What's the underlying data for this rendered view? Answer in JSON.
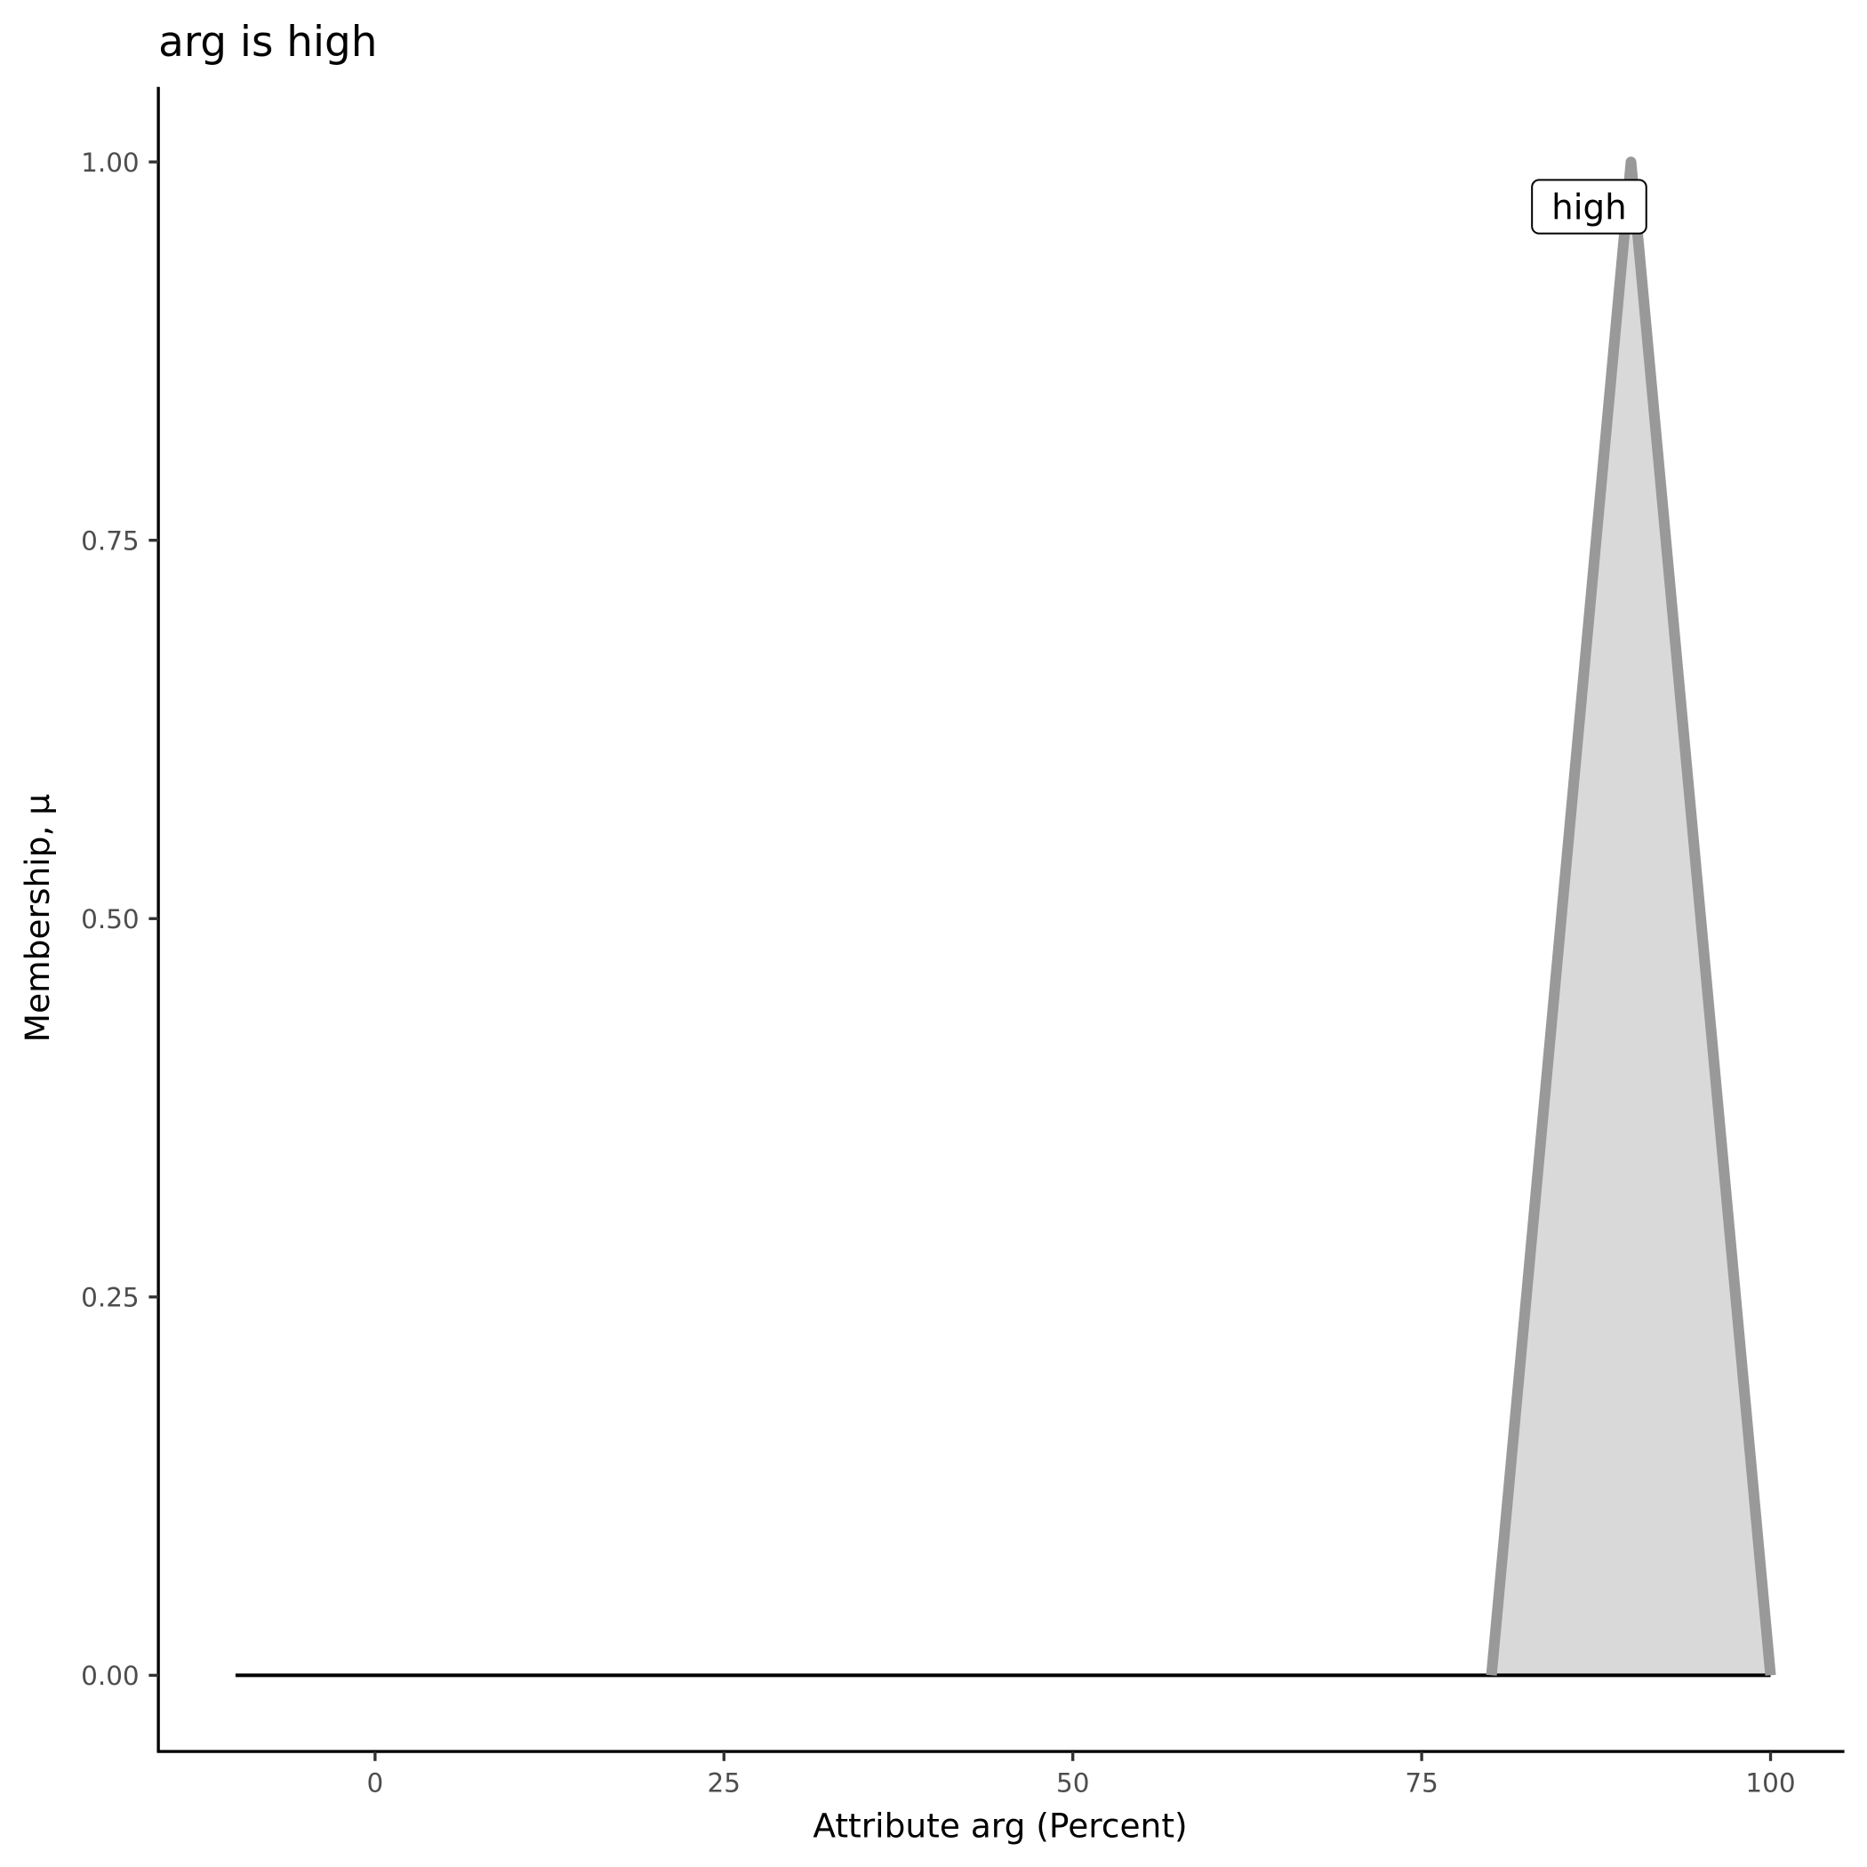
{
  "chart_data": {
    "type": "area",
    "title": "arg is high",
    "xlabel": "Attribute arg (Percent)",
    "ylabel": "Membership, μ",
    "xlim": [
      -15.5,
      105
    ],
    "ylim": [
      -0.05,
      1.05
    ],
    "x_ticks": [
      0,
      25,
      50,
      75,
      100
    ],
    "x_tick_labels": [
      "0",
      "25",
      "50",
      "75",
      "100"
    ],
    "y_ticks": [
      0,
      0.25,
      0.5,
      0.75,
      1.0
    ],
    "y_tick_labels": [
      "0.00",
      "0.25",
      "0.50",
      "0.75",
      "1.00"
    ],
    "grid": false,
    "baseline": {
      "x": [
        -10,
        100
      ],
      "y": [
        0,
        0
      ],
      "color": "#000000"
    },
    "series": [
      {
        "name": "high",
        "x": [
          80,
          90,
          100
        ],
        "y": [
          0,
          1,
          0
        ],
        "fill": "#d9d9d9",
        "stroke": "#999999"
      }
    ],
    "annotations": [
      {
        "text": "high",
        "x": 87,
        "y": 0.97
      }
    ]
  }
}
